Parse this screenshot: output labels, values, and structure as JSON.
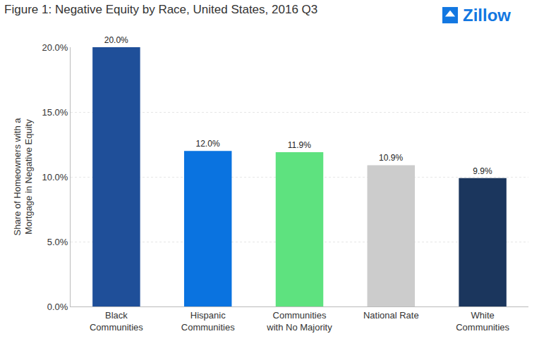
{
  "chart_data": {
    "type": "bar",
    "title": "Figure 1: Negative Equity by Race, United States, 2016 Q3",
    "y_label": "Share of Homeowners with a\nMortgage in Negative Equity",
    "annotations": [
      "Zillow"
    ],
    "categories": [
      "Black\nCommunities",
      "Hispanic\nCommunities",
      "Communities\nwith No Majority",
      "National Rate",
      "White\nCommunities"
    ],
    "values": [
      20.0,
      12.0,
      11.9,
      10.9,
      9.9
    ],
    "value_labels": [
      "20.0%",
      "12.0%",
      "11.9%",
      "10.9%",
      "9.9%"
    ],
    "colors": [
      "#1f4f99",
      "#0a73e0",
      "#5ee27f",
      "#cccccc",
      "#1b365d"
    ],
    "ylim": [
      0,
      20
    ],
    "yticks": [
      {
        "value": 0,
        "label": "0.0%"
      },
      {
        "value": 5,
        "label": "5.0%"
      },
      {
        "value": 10,
        "label": "10.0%"
      },
      {
        "value": 15,
        "label": "15.0%"
      },
      {
        "value": 20,
        "label": "20.0%"
      }
    ],
    "grid": true,
    "data_labels": true
  }
}
